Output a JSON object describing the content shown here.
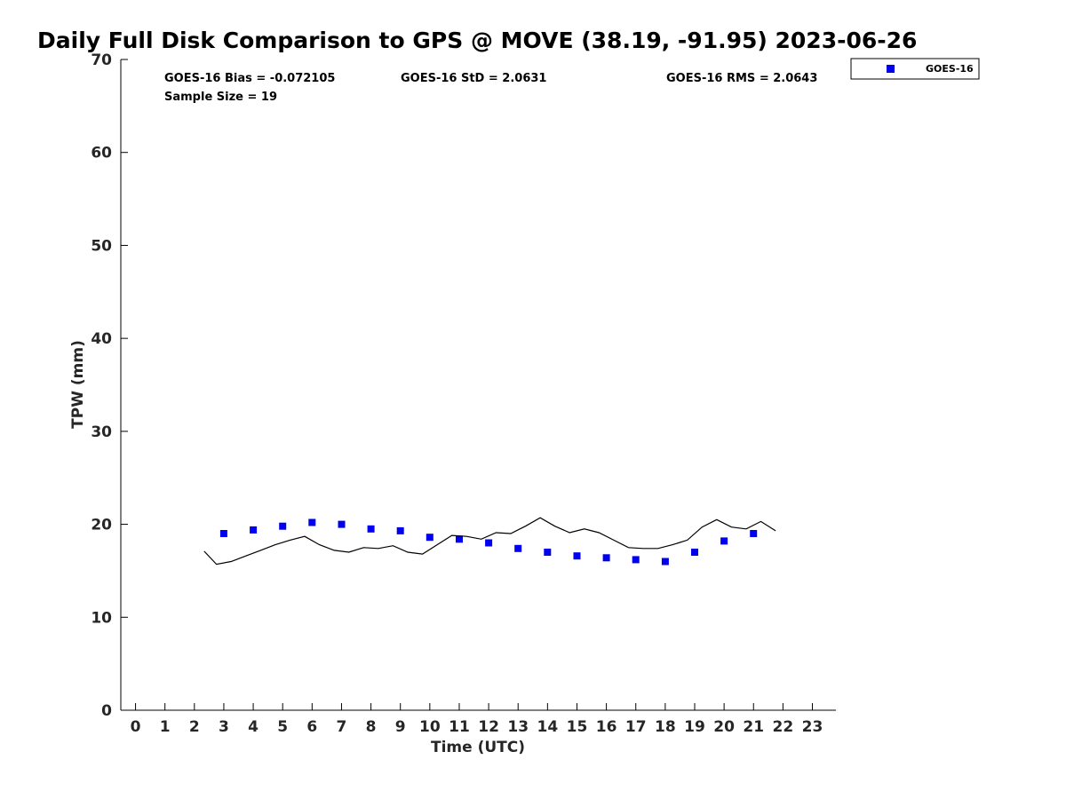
{
  "chart_data": {
    "type": "scatter",
    "title": "Daily Full Disk Comparison to GPS @ MOVE (38.19, -91.95) 2023-06-26",
    "xlabel": "Time (UTC)",
    "ylabel": "TPW (mm)",
    "xlim": [
      -0.5,
      23.8
    ],
    "ylim": [
      0,
      70
    ],
    "xticks": [
      0,
      1,
      2,
      3,
      4,
      5,
      6,
      7,
      8,
      9,
      10,
      11,
      12,
      13,
      14,
      15,
      16,
      17,
      18,
      19,
      20,
      21,
      22,
      23
    ],
    "yticks": [
      0,
      10,
      20,
      30,
      40,
      50,
      60,
      70
    ],
    "grid": false,
    "legend_position": "top-right",
    "stats": {
      "bias": "GOES-16 Bias = -0.072105",
      "std": "GOES-16 StD = 2.0631",
      "rms": "GOES-16 RMS = 2.0643",
      "sample": "Sample Size = 19"
    },
    "series": [
      {
        "name": "GOES-16",
        "kind": "scatter",
        "color": "#0000ee",
        "x": [
          3,
          4,
          5,
          6,
          7,
          8,
          9,
          10,
          11,
          12,
          13,
          14,
          15,
          16,
          17,
          18,
          19,
          20,
          21
        ],
        "y": [
          19.0,
          19.4,
          19.8,
          20.2,
          20.0,
          19.5,
          19.3,
          18.6,
          18.4,
          18.0,
          17.4,
          17.0,
          16.6,
          16.4,
          16.2,
          16.0,
          17.0,
          18.2,
          19.0
        ]
      },
      {
        "kind": "line",
        "color": "#000000",
        "x": [
          2.33,
          2.75,
          3.25,
          3.75,
          4.25,
          4.75,
          5.25,
          5.75,
          6.25,
          6.75,
          7.25,
          7.75,
          8.25,
          8.75,
          9.25,
          9.75,
          10.25,
          10.75,
          11.25,
          11.75,
          12.25,
          12.75,
          13.25,
          13.75,
          14.25,
          14.75,
          15.25,
          15.75,
          16.25,
          16.75,
          17.25,
          17.75,
          18.25,
          18.75,
          19.25,
          19.75,
          20.25,
          20.75,
          21.25,
          21.75
        ],
        "y": [
          17.1,
          15.7,
          16.0,
          16.6,
          17.2,
          17.8,
          18.3,
          18.7,
          17.8,
          17.2,
          17.0,
          17.5,
          17.4,
          17.7,
          17.0,
          16.8,
          17.8,
          18.8,
          18.7,
          18.4,
          19.1,
          19.0,
          19.8,
          20.7,
          19.8,
          19.1,
          19.5,
          19.1,
          18.3,
          17.5,
          17.4,
          17.4,
          17.8,
          18.3,
          19.7,
          20.5,
          19.7,
          19.5,
          20.3,
          19.3
        ]
      }
    ]
  }
}
